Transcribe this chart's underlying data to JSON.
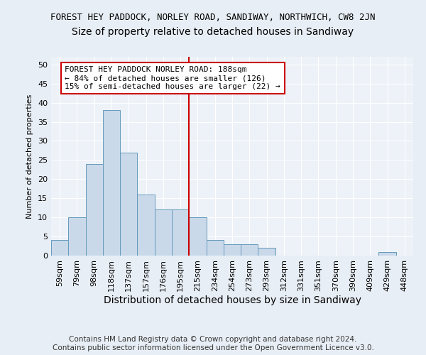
{
  "title": "FOREST HEY PADDOCK, NORLEY ROAD, SANDIWAY, NORTHWICH, CW8 2JN",
  "subtitle": "Size of property relative to detached houses in Sandiway",
  "xlabel": "Distribution of detached houses by size in Sandiway",
  "ylabel": "Number of detached properties",
  "bar_labels": [
    "59sqm",
    "79sqm",
    "98sqm",
    "118sqm",
    "137sqm",
    "157sqm",
    "176sqm",
    "195sqm",
    "215sqm",
    "234sqm",
    "254sqm",
    "273sqm",
    "293sqm",
    "312sqm",
    "331sqm",
    "351sqm",
    "370sqm",
    "390sqm",
    "409sqm",
    "429sqm",
    "448sqm"
  ],
  "bar_values": [
    4,
    10,
    24,
    38,
    27,
    16,
    12,
    12,
    10,
    4,
    3,
    3,
    2,
    0,
    0,
    0,
    0,
    0,
    0,
    1,
    0
  ],
  "bar_color": "#c9d9ea",
  "bar_edge_color": "#6699bb",
  "vline_x": 7.5,
  "vline_color": "#cc0000",
  "annotation_line1": "FOREST HEY PADDOCK NORLEY ROAD: 188sqm",
  "annotation_line2": "← 84% of detached houses are smaller (126)",
  "annotation_line3": "15% of semi-detached houses are larger (22) →",
  "annotation_box_color": "#ffffff",
  "annotation_box_edge": "#cc0000",
  "ylim": [
    0,
    52
  ],
  "yticks": [
    0,
    5,
    10,
    15,
    20,
    25,
    30,
    35,
    40,
    45,
    50
  ],
  "footnote": "Contains HM Land Registry data © Crown copyright and database right 2024.\nContains public sector information licensed under the Open Government Licence v3.0.",
  "bg_color": "#e8eef5",
  "plot_bg_color": "#edf2f8",
  "title_fontsize": 9,
  "subtitle_fontsize": 10,
  "xlabel_fontsize": 10,
  "ylabel_fontsize": 8,
  "tick_fontsize": 8,
  "annotation_fontsize": 8,
  "footnote_fontsize": 7.5
}
